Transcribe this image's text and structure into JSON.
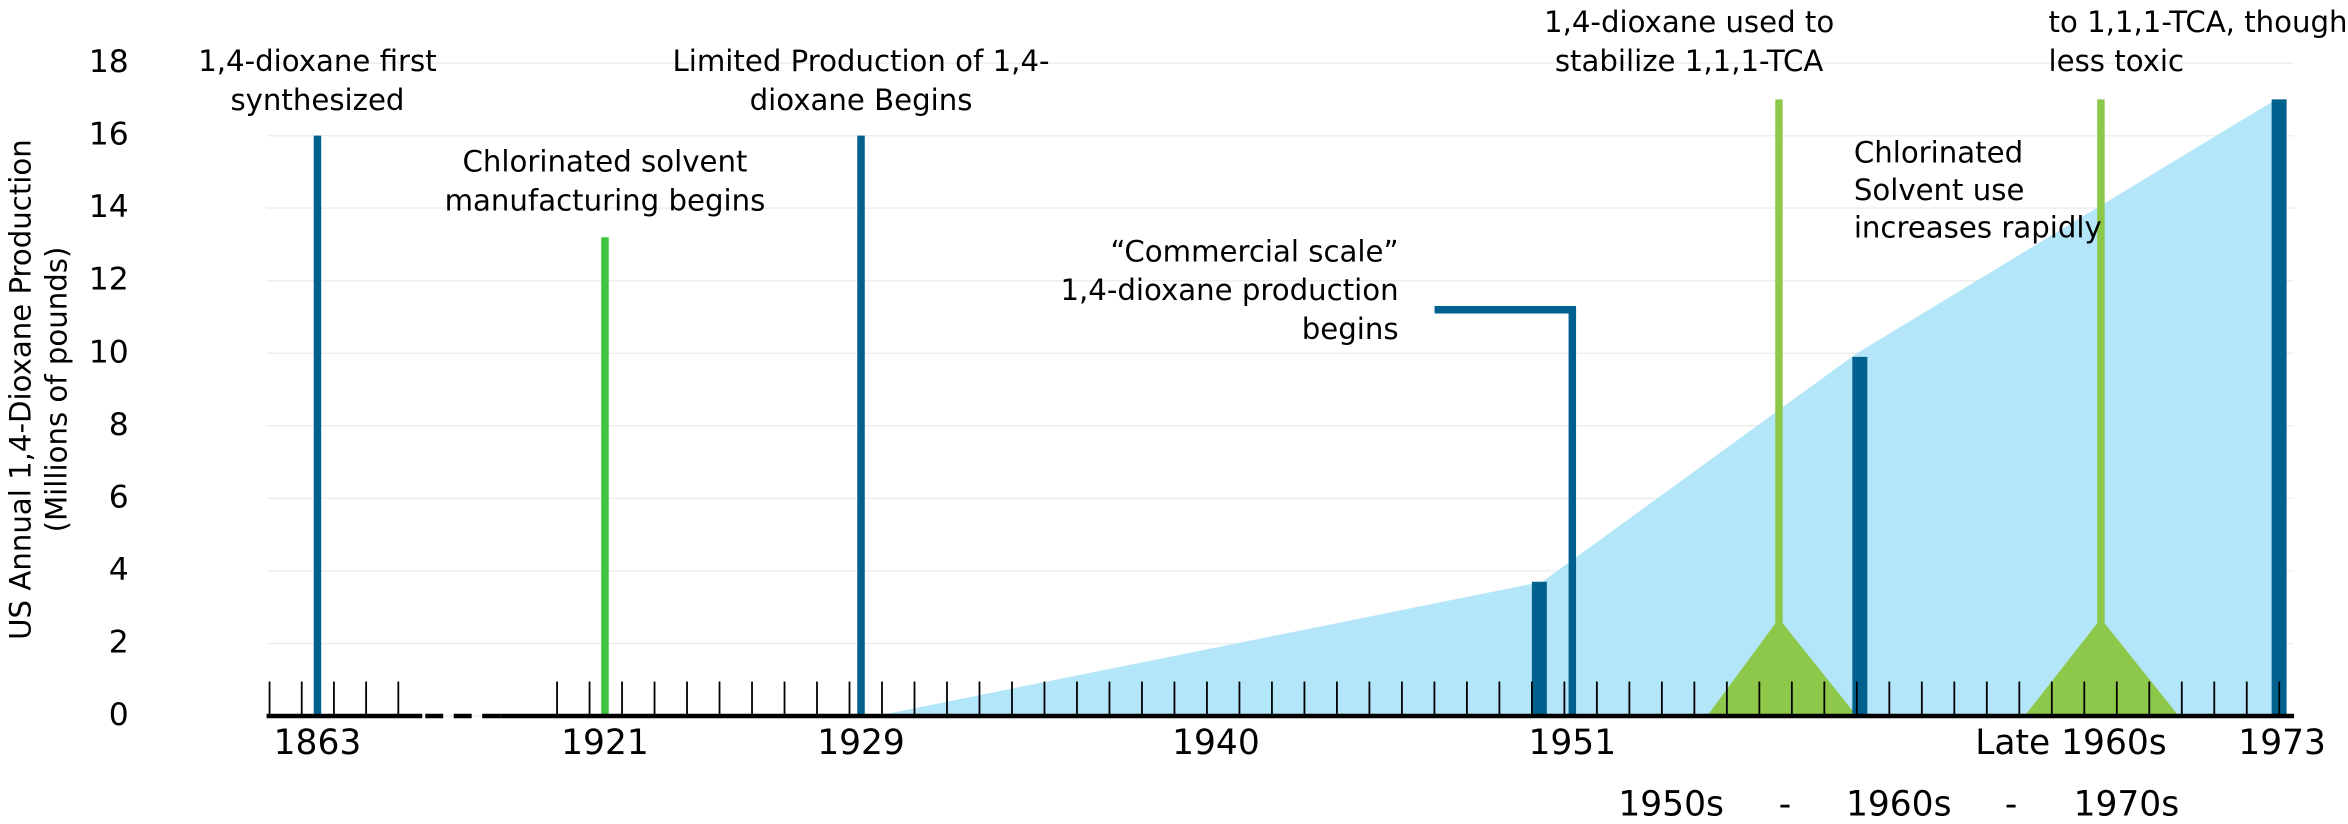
{
  "chart_data": {
    "type": "timeline",
    "ylabel": [
      "US Annual 1,4-Dioxane Production",
      "(Millions of pounds)"
    ],
    "ylim": [
      0,
      18
    ],
    "yticks": [
      0,
      2,
      4,
      6,
      8,
      10,
      12,
      14,
      16,
      18
    ],
    "grid": true,
    "x_labels": [
      "1863",
      "1921",
      "1929",
      "1940",
      "1951",
      "Late 1960s",
      "1973"
    ],
    "period_labels": [
      "1950s",
      "-",
      "1960s",
      "-",
      "1970s"
    ],
    "area": {
      "color": "#b3e6f8",
      "values": [
        0,
        3.7,
        10,
        17
      ]
    },
    "events": [
      {
        "value": 16,
        "color": "#00618f",
        "label": [
          "1,4-dioxane first",
          "synthesized"
        ]
      },
      {
        "value": 13.2,
        "color": "#3ec43e",
        "label": [
          "Chlorinated solvent",
          "manufacturing begins"
        ]
      },
      {
        "value": 16,
        "color": "#00618f",
        "label": [
          "Limited Production of 1,4-",
          "dioxane Begins"
        ]
      },
      {
        "value": 11.2,
        "color": "#00618f",
        "label": [
          "“Commercial scale”",
          "1,4-dioxane production",
          "begins"
        ]
      },
      {
        "value": 17,
        "color": "#8dc84a",
        "label": [
          "1,4-dioxane used to",
          "stabilize  1,1,1-TCA"
        ]
      },
      {
        "value": 17,
        "color": "#8dc84a",
        "label": [
          "to 1,1,1-TCA, though",
          "less toxic"
        ]
      }
    ],
    "note": [
      "Chlorinated",
      "Solvent use",
      "increases rapidly"
    ],
    "bars": [
      {
        "value": 3.7,
        "color": "#00618f"
      },
      {
        "value": 9.9,
        "color": "#00618f"
      },
      {
        "value": 17,
        "color": "#00618f"
      }
    ]
  }
}
